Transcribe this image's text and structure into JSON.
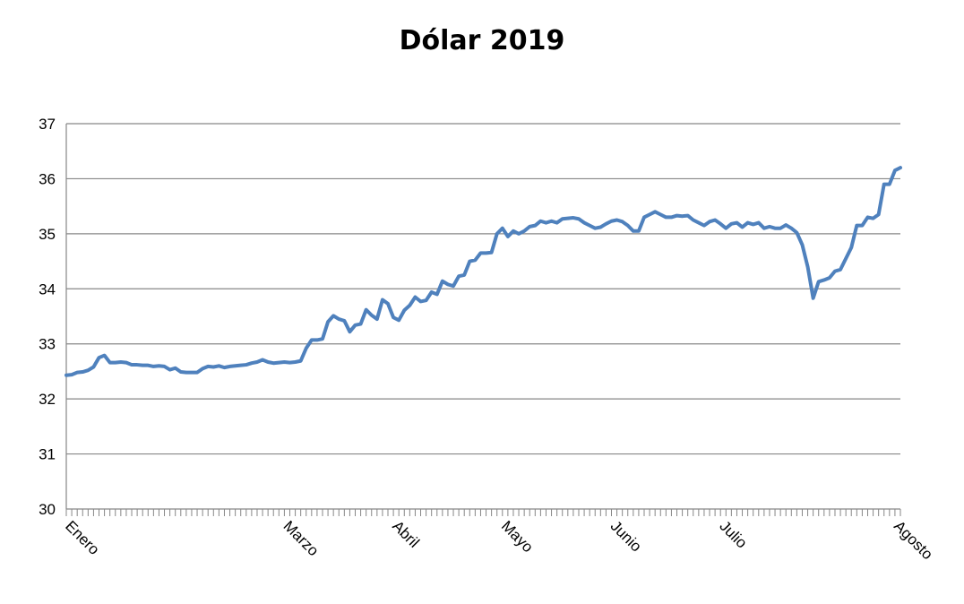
{
  "chart_data": {
    "type": "line",
    "title": "Dólar 2019",
    "xlabel": "",
    "ylabel": "",
    "ylim": [
      30,
      37
    ],
    "yticks": [
      "30",
      "31",
      "32",
      "33",
      "34",
      "35",
      "36",
      "37"
    ],
    "grid": true,
    "legend": "none",
    "x_labels": [
      {
        "label": "Enero",
        "index": 0
      },
      {
        "label": "Marzo",
        "index": 40
      },
      {
        "label": "Abril",
        "index": 60
      },
      {
        "label": "Mayo",
        "index": 80
      },
      {
        "label": "Junio",
        "index": 100
      },
      {
        "label": "Julio",
        "index": 120
      },
      {
        "label": "Agosto",
        "index": 152
      }
    ],
    "series": [
      {
        "color": "#4f81bd",
        "values": [
          32.43,
          32.44,
          32.48,
          32.49,
          32.52,
          32.58,
          32.75,
          32.79,
          32.66,
          32.66,
          32.67,
          32.66,
          32.62,
          32.62,
          32.61,
          32.61,
          32.59,
          32.6,
          32.59,
          32.53,
          32.56,
          32.49,
          32.48,
          32.48,
          32.48,
          32.55,
          32.59,
          32.58,
          32.6,
          32.57,
          32.59,
          32.6,
          32.61,
          32.62,
          32.65,
          32.67,
          32.71,
          32.67,
          32.65,
          32.66,
          32.67,
          32.66,
          32.67,
          32.69,
          32.92,
          33.07,
          33.07,
          33.09,
          33.4,
          33.51,
          33.45,
          33.42,
          33.22,
          33.34,
          33.36,
          33.62,
          33.52,
          33.45,
          33.8,
          33.73,
          33.48,
          33.43,
          33.61,
          33.7,
          33.85,
          33.77,
          33.79,
          33.94,
          33.9,
          34.14,
          34.08,
          34.05,
          34.23,
          34.25,
          34.5,
          34.52,
          34.65,
          34.65,
          34.66,
          35.0,
          35.1,
          34.95,
          35.05,
          35.0,
          35.05,
          35.13,
          35.15,
          35.23,
          35.2,
          35.23,
          35.2,
          35.27,
          35.28,
          35.29,
          35.27,
          35.2,
          35.15,
          35.1,
          35.12,
          35.18,
          35.23,
          35.25,
          35.22,
          35.15,
          35.05,
          35.05,
          35.3,
          35.35,
          35.4,
          35.35,
          35.3,
          35.3,
          35.33,
          35.32,
          35.33,
          35.25,
          35.2,
          35.15,
          35.22,
          35.25,
          35.18,
          35.1,
          35.18,
          35.2,
          35.12,
          35.2,
          35.17,
          35.2,
          35.1,
          35.13,
          35.1,
          35.1,
          35.16,
          35.1,
          35.02,
          34.8,
          34.4,
          33.83,
          34.13,
          34.16,
          34.2,
          34.32,
          34.35,
          34.55,
          34.75,
          35.15,
          35.15,
          35.3,
          35.28,
          35.35,
          35.9,
          35.9,
          36.15,
          36.2
        ]
      }
    ]
  }
}
